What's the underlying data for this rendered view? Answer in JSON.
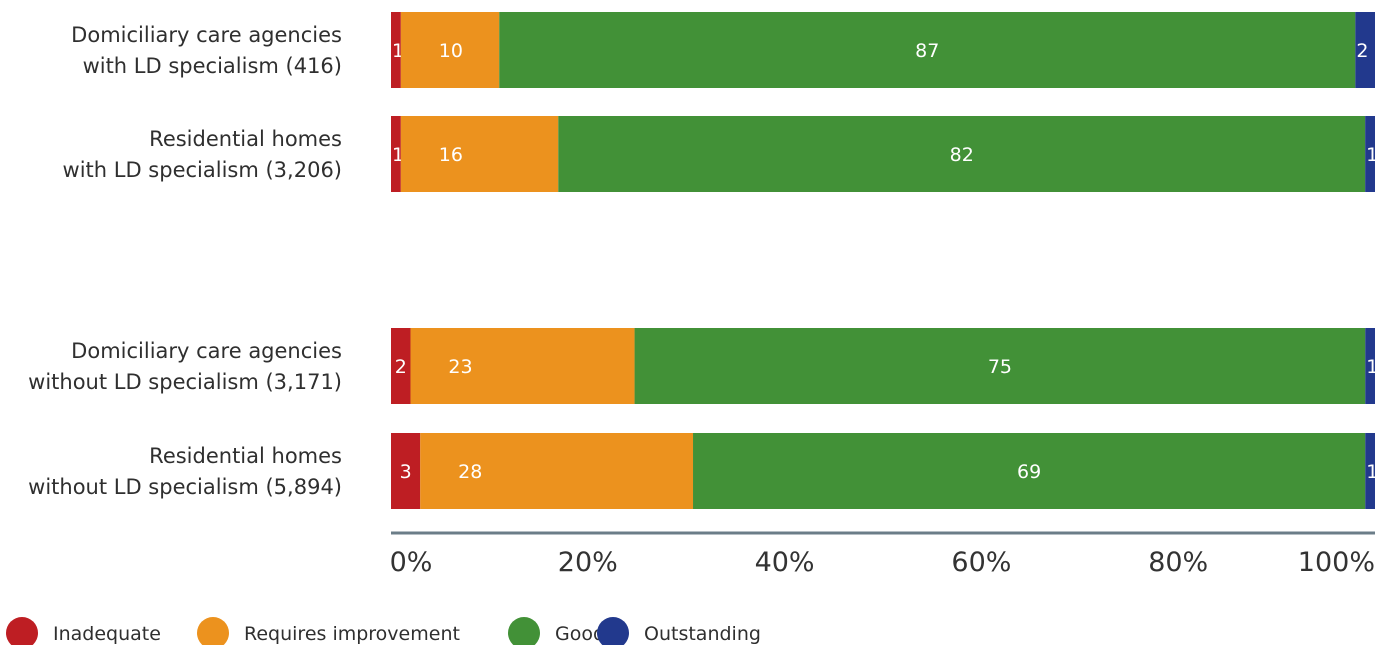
{
  "colors": {
    "Inadequate": "#be1e23",
    "Requires improvement": "#ec921e",
    "Good": "#429137",
    "Outstanding": "#22398d",
    "axis": "#6b7d88"
  },
  "chart_data": {
    "type": "bar",
    "orientation": "horizontal",
    "stacked": true,
    "categories": [
      [
        "Domiciliary care agencies",
        "with LD specialism (416)"
      ],
      [
        "Residential homes",
        "with LD specialism (3,206)"
      ],
      [
        "Domiciliary care agencies",
        "without LD specialism (3,171)"
      ],
      [
        "Residential homes",
        "without LD specialism (5,894)"
      ]
    ],
    "series": [
      {
        "name": "Inadequate",
        "values": [
          1,
          1,
          2,
          3
        ]
      },
      {
        "name": "Requires improvement",
        "values": [
          10,
          16,
          23,
          28
        ]
      },
      {
        "name": "Good",
        "values": [
          87,
          82,
          75,
          69
        ]
      },
      {
        "name": "Outstanding",
        "values": [
          2,
          1,
          1,
          1
        ]
      }
    ],
    "xlim": [
      0,
      100
    ],
    "xticks": [
      "0%",
      "20%",
      "40%",
      "60%",
      "80%",
      "100%"
    ],
    "legend": "bottom",
    "grid": false
  }
}
